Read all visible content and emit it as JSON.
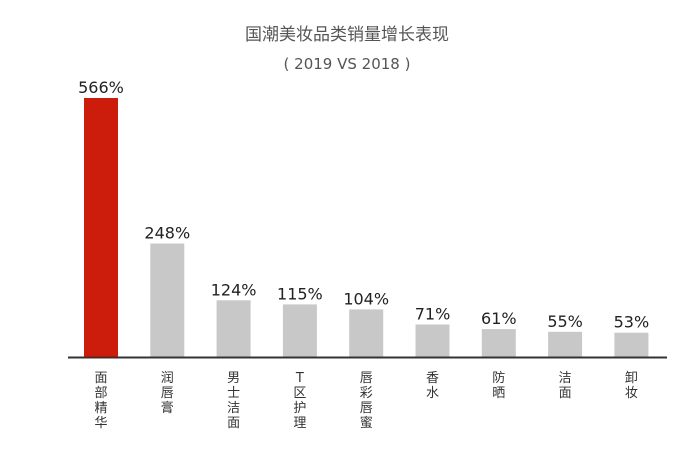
{
  "chart_data": {
    "type": "bar",
    "title": "国潮美妆品类销量增长表现",
    "subtitle": "( 2019 VS 2018 )",
    "categories": [
      "面部精华",
      "润唇膏",
      "男士洁面",
      "T区护理",
      "唇彩唇蜜",
      "香水",
      "防晒",
      "洁面",
      "卸妆"
    ],
    "values": [
      566,
      248,
      124,
      115,
      104,
      71,
      61,
      55,
      53
    ],
    "value_labels": [
      "566%",
      "248%",
      "124%",
      "115%",
      "104%",
      "71%",
      "61%",
      "55%",
      "53%"
    ],
    "unit": "%",
    "ylim": [
      0,
      566
    ],
    "grid": false,
    "legend": "none",
    "highlight_index": 0,
    "colors": {
      "highlight": "#cc1c0c",
      "bar": "#c8c8c8",
      "axis": "#333333"
    }
  }
}
